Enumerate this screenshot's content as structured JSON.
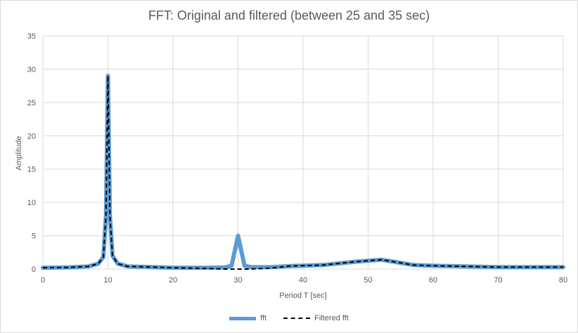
{
  "chart_data": {
    "type": "line",
    "title": "FFT: Original and filtered (between 25 and 35 sec)",
    "xlabel": "Period T [sec]",
    "ylabel": "Amplitude",
    "xlim": [
      0,
      80
    ],
    "ylim": [
      0,
      35
    ],
    "xticks": [
      0,
      10,
      20,
      30,
      40,
      50,
      60,
      70,
      80
    ],
    "yticks": [
      0,
      5,
      10,
      15,
      20,
      25,
      30,
      35
    ],
    "grid": true,
    "legend_position": "bottom",
    "series": [
      {
        "name": "fft",
        "color": "#5b9bd5",
        "style": "solid",
        "points": [
          [
            0,
            0.2
          ],
          [
            4,
            0.25
          ],
          [
            7,
            0.4
          ],
          [
            8.5,
            0.8
          ],
          [
            9.3,
            1.8
          ],
          [
            9.7,
            8
          ],
          [
            10,
            29
          ],
          [
            10.3,
            8
          ],
          [
            10.7,
            2
          ],
          [
            11.5,
            0.8
          ],
          [
            13,
            0.4
          ],
          [
            17,
            0.3
          ],
          [
            20,
            0.2
          ],
          [
            25,
            0.2
          ],
          [
            28,
            0.25
          ],
          [
            29,
            0.5
          ],
          [
            30,
            5
          ],
          [
            31,
            0.5
          ],
          [
            32,
            0.3
          ],
          [
            35,
            0.3
          ],
          [
            38,
            0.45
          ],
          [
            43,
            0.6
          ],
          [
            46,
            0.9
          ],
          [
            48,
            1.1
          ],
          [
            50,
            1.25
          ],
          [
            52,
            1.4
          ],
          [
            54,
            1.1
          ],
          [
            57,
            0.6
          ],
          [
            60,
            0.5
          ],
          [
            65,
            0.4
          ],
          [
            70,
            0.3
          ],
          [
            75,
            0.3
          ],
          [
            80,
            0.3
          ]
        ]
      },
      {
        "name": "Filtered fft",
        "color": "#000000",
        "style": "dashed",
        "points": [
          [
            0,
            0.2
          ],
          [
            4,
            0.25
          ],
          [
            7,
            0.4
          ],
          [
            8.5,
            0.8
          ],
          [
            9.3,
            1.8
          ],
          [
            9.7,
            8
          ],
          [
            10,
            29
          ],
          [
            10.3,
            8
          ],
          [
            10.7,
            2
          ],
          [
            11.5,
            0.8
          ],
          [
            13,
            0.4
          ],
          [
            17,
            0.3
          ],
          [
            20,
            0.2
          ],
          [
            25,
            0.1
          ],
          [
            28,
            0
          ],
          [
            32,
            0
          ],
          [
            35,
            0.15
          ],
          [
            38,
            0.45
          ],
          [
            43,
            0.6
          ],
          [
            46,
            0.9
          ],
          [
            48,
            1.1
          ],
          [
            50,
            1.25
          ],
          [
            52,
            1.4
          ],
          [
            54,
            1.1
          ],
          [
            57,
            0.6
          ],
          [
            60,
            0.5
          ],
          [
            65,
            0.4
          ],
          [
            70,
            0.3
          ],
          [
            75,
            0.3
          ],
          [
            80,
            0.3
          ]
        ]
      }
    ]
  }
}
